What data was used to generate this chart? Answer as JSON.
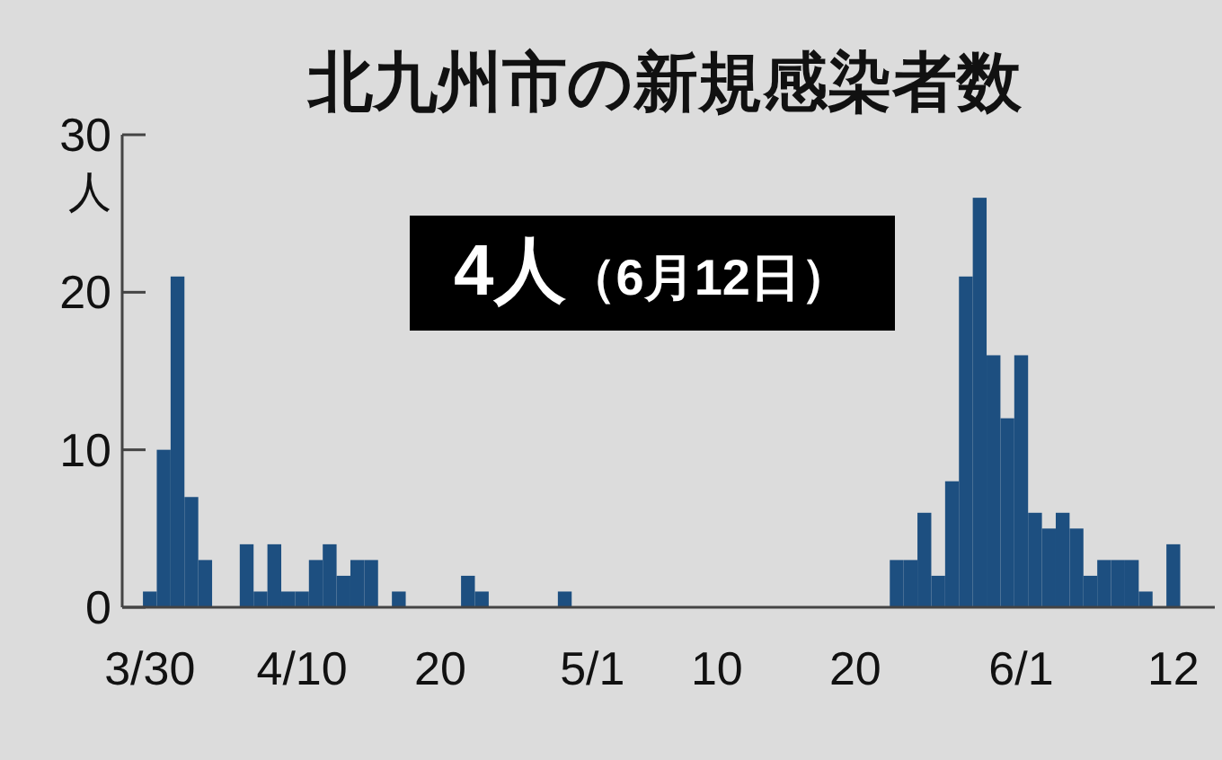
{
  "chart_data": {
    "type": "bar",
    "title": "北九州市の新規感染者数",
    "ylabel": "人",
    "annotations": [
      "4人（6月12日）"
    ],
    "x": [
      "--03-30",
      "--03-31",
      "--04-01",
      "--04-02",
      "--04-03",
      "--04-06",
      "--04-07",
      "--04-08",
      "--04-09",
      "--04-10",
      "--04-11",
      "--04-12",
      "--04-13",
      "--04-14",
      "--04-15",
      "--04-17",
      "--04-22",
      "--04-23",
      "--04-29",
      "--05-23",
      "--05-24",
      "--05-25",
      "--05-26",
      "--05-27",
      "--05-28",
      "--05-29",
      "--05-30",
      "--05-31",
      "--06-01",
      "--06-02",
      "--06-03",
      "--06-04",
      "--06-05",
      "--06-06",
      "--06-07",
      "--06-08",
      "--06-09",
      "--06-10",
      "--06-12"
    ],
    "values": [
      1,
      10,
      21,
      7,
      3,
      4,
      1,
      4,
      1,
      1,
      3,
      4,
      2,
      3,
      3,
      1,
      2,
      1,
      1,
      3,
      3,
      6,
      2,
      8,
      21,
      26,
      16,
      12,
      16,
      6,
      5,
      6,
      5,
      2,
      3,
      3,
      3,
      1,
      4
    ],
    "color": "#1d4f80",
    "xlim": [
      "--03-28",
      "--06-15"
    ],
    "xticks": [
      {
        "value": "--03-30",
        "label": "3/30"
      },
      {
        "value": "--04-10",
        "label": "4/10"
      },
      {
        "value": "--04-20",
        "label": "20"
      },
      {
        "value": "--05-01",
        "label": "5/1"
      },
      {
        "value": "--05-10",
        "label": "10"
      },
      {
        "value": "--05-20",
        "label": "20"
      },
      {
        "value": "--06-01",
        "label": "6/1"
      },
      {
        "value": "--06-12",
        "label": "12"
      }
    ],
    "ylim": [
      0,
      30
    ],
    "yticks": [
      0,
      10,
      20,
      30
    ],
    "grid": false
  }
}
